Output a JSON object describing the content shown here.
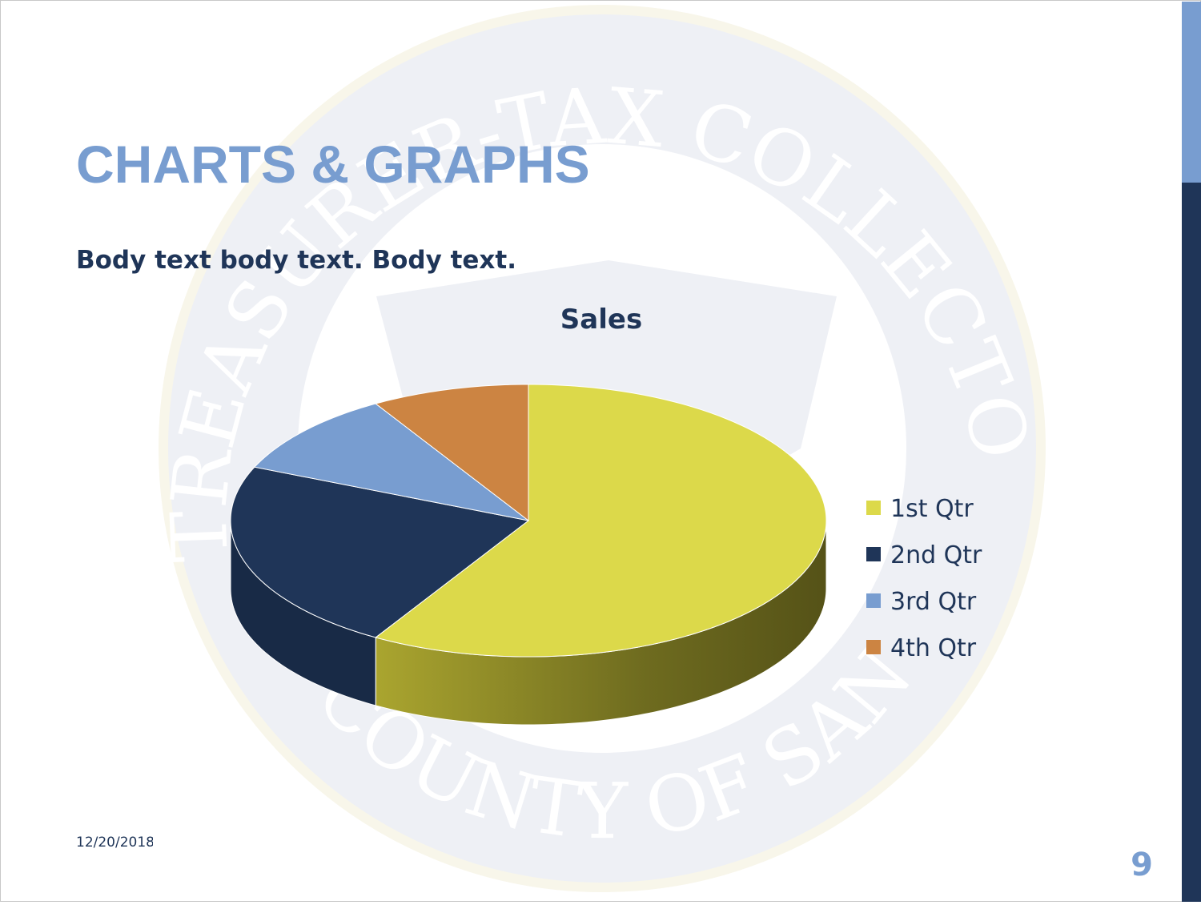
{
  "slide": {
    "title": "CHARTS & GRAPHS",
    "body": "Body text body text. Body text.",
    "date": "12/20/2018",
    "page_number": "9",
    "watermark": {
      "top": "TREASURER-TAX COLLECTOR",
      "bottom": "COUNTY OF SAN DIEGO"
    }
  },
  "chart_data": {
    "type": "pie",
    "title": "Sales",
    "categories": [
      "1st Qtr",
      "2nd Qtr",
      "3rd Qtr",
      "4th Qtr"
    ],
    "values": [
      8.2,
      3.2,
      1.4,
      1.2
    ],
    "colors": [
      "#dcd94a",
      "#1f3558",
      "#789dd0",
      "#cc8442"
    ],
    "legend": "right",
    "three_d": true
  }
}
